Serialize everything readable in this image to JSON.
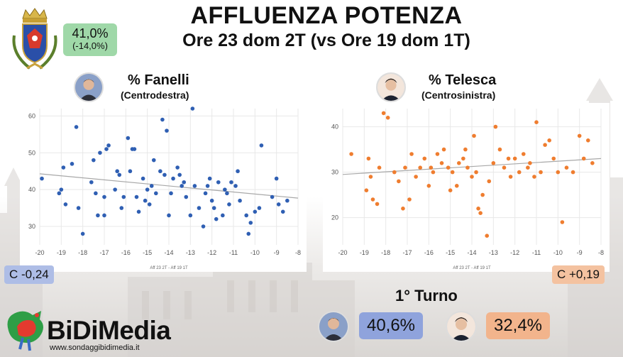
{
  "header": {
    "title": "AFFLUENZA POTENZA",
    "subtitle": "Ore 23 dom 2T (vs Ore 19 dom 1T)",
    "turnout": "41,0%",
    "turnout_delta": "(-14,0%)"
  },
  "candidates": [
    {
      "name": "% Fanelli",
      "coalition": "(Centrodestra)",
      "corr": "C -0,24",
      "first_round": "40,6%"
    },
    {
      "name": "% Telesca",
      "coalition": "(Centrosinistra)",
      "corr": "C +0,19",
      "first_round": "32,4%"
    }
  ],
  "turno_label": "1° Turno",
  "brand": {
    "name": "BiDiMedia",
    "url": "www.sondaggibidimedia.it"
  },
  "colors": {
    "left_series": "#2f5fb3",
    "right_series": "#ef7d2f",
    "turnout_box": "#9fd8a8"
  },
  "chart_data": [
    {
      "type": "scatter",
      "title": "% Fanelli",
      "xlabel": "Aff 23 2T - Aff 19 1T",
      "ylabel": "",
      "xlim": [
        -20,
        -8
      ],
      "ylim": [
        25,
        62
      ],
      "xticks": [
        "-20",
        "-19",
        "-18",
        "-17",
        "-16",
        "-15",
        "-14",
        "-13",
        "-12",
        "-11",
        "-10",
        "-9",
        "-8"
      ],
      "yticks": [
        "30",
        "40",
        "50",
        "60"
      ],
      "grid": true,
      "trendline": [
        [
          -20,
          44.3
        ],
        [
          -8,
          37.7
        ]
      ],
      "points": [
        [
          -19.9,
          43
        ],
        [
          -19.1,
          39
        ],
        [
          -19.0,
          40
        ],
        [
          -18.9,
          46
        ],
        [
          -18.8,
          36
        ],
        [
          -18.5,
          47
        ],
        [
          -18.3,
          57
        ],
        [
          -18.2,
          35
        ],
        [
          -18.0,
          28
        ],
        [
          -17.6,
          42
        ],
        [
          -17.5,
          48
        ],
        [
          -17.4,
          39
        ],
        [
          -17.3,
          33
        ],
        [
          -17.2,
          50
        ],
        [
          -17.0,
          38
        ],
        [
          -17.0,
          33
        ],
        [
          -16.9,
          51
        ],
        [
          -16.8,
          52
        ],
        [
          -16.5,
          40
        ],
        [
          -16.4,
          45
        ],
        [
          -16.3,
          44
        ],
        [
          -16.2,
          35
        ],
        [
          -16.1,
          38
        ],
        [
          -15.9,
          54
        ],
        [
          -15.8,
          45
        ],
        [
          -15.7,
          51
        ],
        [
          -15.6,
          51
        ],
        [
          -15.5,
          38
        ],
        [
          -15.4,
          34
        ],
        [
          -15.2,
          43
        ],
        [
          -15.1,
          37
        ],
        [
          -15.0,
          40
        ],
        [
          -14.9,
          36
        ],
        [
          -14.8,
          41
        ],
        [
          -14.7,
          48
        ],
        [
          -14.6,
          39
        ],
        [
          -14.4,
          45
        ],
        [
          -14.3,
          59
        ],
        [
          -14.2,
          44
        ],
        [
          -14.1,
          56
        ],
        [
          -14.0,
          33
        ],
        [
          -13.9,
          39
        ],
        [
          -13.8,
          43
        ],
        [
          -13.6,
          46
        ],
        [
          -13.5,
          44
        ],
        [
          -13.4,
          41
        ],
        [
          -13.3,
          42
        ],
        [
          -13.2,
          38
        ],
        [
          -13.0,
          33
        ],
        [
          -12.9,
          62
        ],
        [
          -12.8,
          41
        ],
        [
          -12.6,
          35
        ],
        [
          -12.4,
          30
        ],
        [
          -12.3,
          39
        ],
        [
          -12.2,
          41
        ],
        [
          -12.1,
          43
        ],
        [
          -12.0,
          37
        ],
        [
          -11.9,
          35
        ],
        [
          -11.8,
          32
        ],
        [
          -11.7,
          42
        ],
        [
          -11.5,
          33
        ],
        [
          -11.4,
          40
        ],
        [
          -11.3,
          39
        ],
        [
          -11.2,
          36
        ],
        [
          -11.1,
          42
        ],
        [
          -10.9,
          41
        ],
        [
          -10.8,
          45
        ],
        [
          -10.7,
          37
        ],
        [
          -10.4,
          33
        ],
        [
          -10.3,
          28
        ],
        [
          -10.2,
          31
        ],
        [
          -10.0,
          34
        ],
        [
          -9.8,
          35
        ],
        [
          -9.7,
          52
        ],
        [
          -9.2,
          38
        ],
        [
          -9.0,
          43
        ],
        [
          -8.9,
          36
        ],
        [
          -8.7,
          34
        ],
        [
          -8.5,
          37
        ]
      ]
    },
    {
      "type": "scatter",
      "title": "% Telesca",
      "xlabel": "Aff 23 2T - Aff 19 1T",
      "ylabel": "",
      "xlim": [
        -20,
        -8
      ],
      "ylim": [
        14,
        44
      ],
      "xticks": [
        "-20",
        "-19",
        "-18",
        "-17",
        "-16",
        "-15",
        "-14",
        "-13",
        "-12",
        "-11",
        "-10",
        "-9",
        "-8"
      ],
      "yticks": [
        "20",
        "30",
        "40"
      ],
      "grid": true,
      "trendline": [
        [
          -20,
          29.5
        ],
        [
          -8,
          33.0
        ]
      ],
      "points": [
        [
          -19.6,
          34
        ],
        [
          -18.9,
          26
        ],
        [
          -18.8,
          33
        ],
        [
          -18.7,
          29
        ],
        [
          -18.6,
          24
        ],
        [
          -18.4,
          23
        ],
        [
          -18.3,
          31
        ],
        [
          -18.1,
          43
        ],
        [
          -17.9,
          42
        ],
        [
          -17.6,
          30
        ],
        [
          -17.4,
          28
        ],
        [
          -17.2,
          22
        ],
        [
          -17.1,
          31
        ],
        [
          -16.9,
          24
        ],
        [
          -16.8,
          34
        ],
        [
          -16.6,
          29
        ],
        [
          -16.4,
          31
        ],
        [
          -16.2,
          33
        ],
        [
          -16.0,
          27
        ],
        [
          -15.9,
          31
        ],
        [
          -15.8,
          30
        ],
        [
          -15.6,
          34
        ],
        [
          -15.4,
          32
        ],
        [
          -15.3,
          35
        ],
        [
          -15.1,
          31
        ],
        [
          -15.0,
          26
        ],
        [
          -14.9,
          30
        ],
        [
          -14.7,
          27
        ],
        [
          -14.6,
          32
        ],
        [
          -14.4,
          33
        ],
        [
          -14.3,
          35
        ],
        [
          -14.2,
          31
        ],
        [
          -14.0,
          29
        ],
        [
          -13.9,
          38
        ],
        [
          -13.8,
          30
        ],
        [
          -13.7,
          22
        ],
        [
          -13.6,
          21
        ],
        [
          -13.5,
          25
        ],
        [
          -13.3,
          16
        ],
        [
          -13.2,
          28
        ],
        [
          -13.0,
          32
        ],
        [
          -12.9,
          40
        ],
        [
          -12.7,
          35
        ],
        [
          -12.5,
          31
        ],
        [
          -12.3,
          33
        ],
        [
          -12.2,
          29
        ],
        [
          -12.0,
          33
        ],
        [
          -11.8,
          30
        ],
        [
          -11.6,
          34
        ],
        [
          -11.4,
          31
        ],
        [
          -11.3,
          32
        ],
        [
          -11.1,
          29
        ],
        [
          -11.0,
          41
        ],
        [
          -10.8,
          30
        ],
        [
          -10.6,
          36
        ],
        [
          -10.4,
          37
        ],
        [
          -10.2,
          33
        ],
        [
          -10.0,
          30
        ],
        [
          -9.8,
          19
        ],
        [
          -9.6,
          31
        ],
        [
          -9.3,
          30
        ],
        [
          -9.0,
          38
        ],
        [
          -8.8,
          33
        ],
        [
          -8.6,
          37
        ],
        [
          -8.4,
          32
        ]
      ]
    }
  ]
}
